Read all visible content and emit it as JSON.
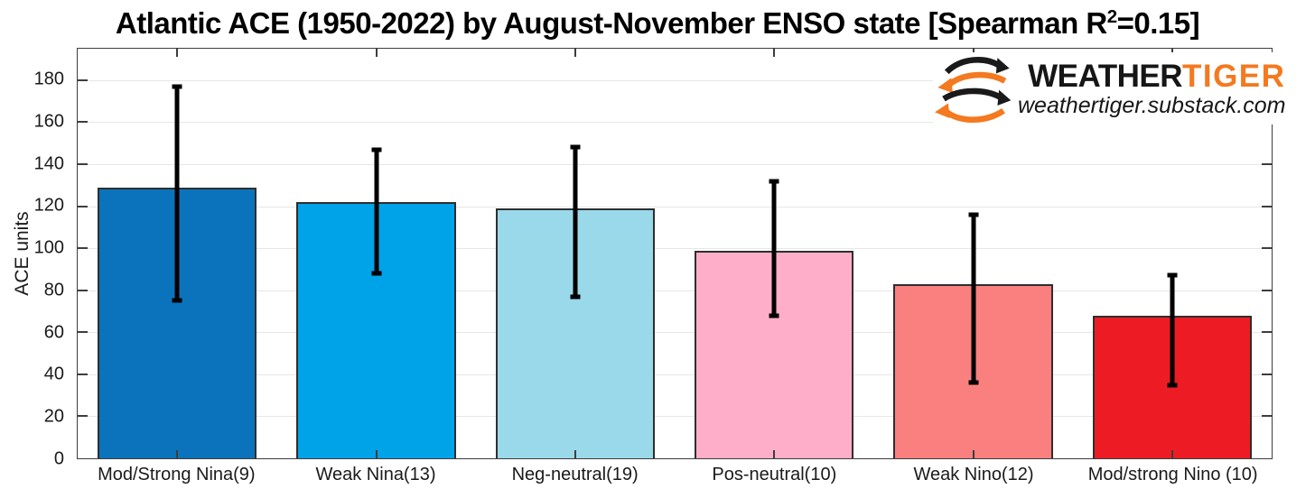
{
  "title": {
    "text_before_sup": "Atlantic ACE (1950-2022) by August-November ENSO state [Spearman R",
    "sup": "2",
    "text_after_sup": "=0.15]"
  },
  "y_axis": {
    "label": "ACE units"
  },
  "logo": {
    "brand_black": "WEATHER",
    "brand_orange": "TIGER",
    "subtitle": "weathertiger.substack.com",
    "orange_color": "#F4791F",
    "black_color": "#161616"
  },
  "chart_data": {
    "type": "bar",
    "title": "Atlantic ACE (1950-2022) by August-November ENSO state [Spearman R^2=0.15]",
    "xlabel": "",
    "ylabel": "ACE units",
    "ylim": [
      0,
      195
    ],
    "yticks": [
      0,
      20,
      40,
      60,
      80,
      100,
      120,
      140,
      160,
      180
    ],
    "grid": true,
    "legend": false,
    "bar_width_fraction": 0.8,
    "categories": [
      "Mod/Strong Nina(9)",
      "Weak Nina(13)",
      "Neg-neutral(19)",
      "Pos-neutral(10)",
      "Weak Nino(12)",
      "Mod/strong Nino (10)"
    ],
    "values": [
      129,
      122,
      119,
      99,
      83,
      68
    ],
    "error_low": [
      75,
      88,
      77,
      68,
      36,
      35
    ],
    "error_high": [
      177,
      147,
      148,
      132,
      116,
      87
    ],
    "bar_colors": [
      "#0B73BC",
      "#00A2E8",
      "#99D9EA",
      "#FFAEC9",
      "#FA8080",
      "#ED1C24"
    ],
    "bar_edge_color": "#2E2E2E",
    "error_bar_color": "#000000",
    "grid_color": "#E7E7E7",
    "axis_color": "#3D3D3D"
  }
}
